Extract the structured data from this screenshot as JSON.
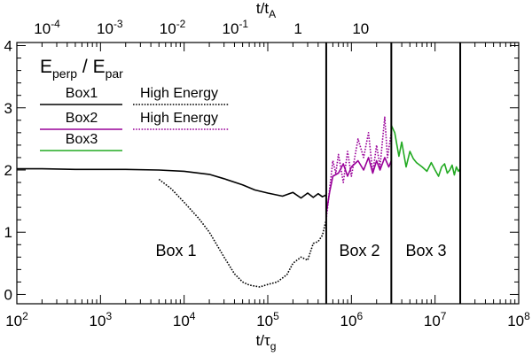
{
  "chart_data": {
    "type": "line",
    "title": "E_perp / E_par",
    "title_parts": {
      "a": "E",
      "a_sub": "perp",
      "sep": " / ",
      "b": "E",
      "b_sub": "par"
    },
    "xlabel": {
      "base": "t/τ",
      "sub": "g"
    },
    "x2label": {
      "base": "t/t",
      "sub": "A"
    },
    "xscale": "log",
    "xlim": [
      100,
      100000000
    ],
    "ylim": [
      -0.15,
      4.05
    ],
    "x_ticks": [
      {
        "value": 100,
        "base": "10",
        "exp": "2"
      },
      {
        "value": 1000,
        "base": "10",
        "exp": "3"
      },
      {
        "value": 10000,
        "base": "10",
        "exp": "4"
      },
      {
        "value": 100000,
        "base": "10",
        "exp": "5"
      },
      {
        "value": 1000000,
        "base": "10",
        "exp": "6"
      },
      {
        "value": 10000000,
        "base": "10",
        "exp": "7"
      },
      {
        "value": 100000000,
        "base": "10",
        "exp": "8"
      }
    ],
    "x2_ticks": [
      {
        "value": 0.0001,
        "base": "10",
        "exp": "-4"
      },
      {
        "value": 0.001,
        "base": "10",
        "exp": "-3"
      },
      {
        "value": 0.01,
        "base": "10",
        "exp": "-2"
      },
      {
        "value": 0.1,
        "base": "10",
        "exp": "-1"
      },
      {
        "value": 1,
        "base": "1",
        "exp": ""
      },
      {
        "value": 10,
        "base": "10",
        "exp": ""
      }
    ],
    "x2_range": [
      3.3e-05,
      3300
    ],
    "y_ticks": [
      {
        "value": 0,
        "label": "0"
      },
      {
        "value": 1,
        "label": "1"
      },
      {
        "value": 2,
        "label": "2"
      },
      {
        "value": 3,
        "label": "3"
      },
      {
        "value": 4,
        "label": "4"
      }
    ],
    "dividers": [
      500000,
      3000000,
      20000000
    ],
    "regions": [
      {
        "label": "Box 1",
        "x": 8000,
        "y": 0.62
      },
      {
        "label": "Box 2",
        "x": 1250000,
        "y": 0.62
      },
      {
        "label": "Box 3",
        "x": 7800000,
        "y": 0.62
      }
    ],
    "legend": [
      {
        "label": "Box1",
        "color": "#000000",
        "style": "solid"
      },
      {
        "label": "High Energy",
        "color": "#000000",
        "style": "dotted"
      },
      {
        "label": "Box2",
        "color": "#990099",
        "style": "solid"
      },
      {
        "label": "High Energy",
        "color": "#990099",
        "style": "dotted"
      },
      {
        "label": "Box3",
        "color": "#22aa22",
        "style": "solid"
      }
    ],
    "series": [
      {
        "name": "Box1",
        "color": "#000000",
        "style": "solid",
        "x": [
          100,
          200,
          500,
          1000,
          2000,
          5000,
          10000,
          20000,
          30000,
          50000,
          70000,
          100000,
          150000,
          200000,
          250000,
          300000,
          350000,
          400000,
          450000,
          500000
        ],
        "y": [
          2.02,
          2.02,
          2.01,
          2.01,
          2.01,
          2.0,
          1.98,
          1.93,
          1.86,
          1.76,
          1.68,
          1.63,
          1.58,
          1.64,
          1.55,
          1.63,
          1.56,
          1.62,
          1.57,
          1.6
        ]
      },
      {
        "name": "High Energy (Box1)",
        "color": "#000000",
        "style": "dotted",
        "x": [
          5000,
          7000,
          10000,
          15000,
          20000,
          30000,
          40000,
          50000,
          60000,
          80000,
          100000,
          130000,
          170000,
          200000,
          250000,
          300000,
          350000,
          400000,
          450000,
          500000
        ],
        "y": [
          1.85,
          1.7,
          1.48,
          1.22,
          1.0,
          0.6,
          0.33,
          0.2,
          0.15,
          0.12,
          0.16,
          0.2,
          0.32,
          0.5,
          0.6,
          0.55,
          0.82,
          0.85,
          0.95,
          1.2
        ]
      },
      {
        "name": "Box2",
        "color": "#990099",
        "style": "solid",
        "x": [
          500000,
          550000,
          600000,
          700000,
          800000,
          900000,
          1000000,
          1200000,
          1400000,
          1600000,
          1800000,
          2000000,
          2200000,
          2500000,
          2800000,
          3000000
        ],
        "y": [
          1.3,
          1.65,
          1.9,
          1.95,
          2.1,
          1.9,
          2.05,
          2.15,
          2.0,
          2.2,
          1.95,
          2.15,
          2.0,
          2.2,
          2.05,
          2.15
        ]
      },
      {
        "name": "High Energy (Box2)",
        "color": "#990099",
        "style": "dotted",
        "x": [
          500000,
          550000,
          600000,
          650000,
          700000,
          800000,
          900000,
          1000000,
          1200000,
          1400000,
          1600000,
          1800000,
          2000000,
          2200000,
          2500000,
          2700000,
          3000000
        ],
        "y": [
          1.2,
          1.7,
          2.15,
          1.95,
          2.25,
          1.8,
          2.3,
          1.9,
          2.5,
          2.2,
          2.6,
          1.95,
          2.4,
          2.05,
          2.85,
          2.2,
          2.6
        ]
      },
      {
        "name": "Box3",
        "color": "#22aa22",
        "style": "solid",
        "x": [
          3000000,
          3300000,
          3700000,
          4000000,
          4500000,
          5000000,
          5500000,
          6000000,
          7000000,
          8000000,
          9000000,
          10000000,
          11000000,
          12000000,
          13000000,
          14000000,
          15000000,
          16000000,
          17000000,
          18000000,
          19000000,
          20000000
        ],
        "y": [
          2.72,
          2.6,
          2.22,
          2.45,
          2.05,
          2.3,
          2.18,
          2.12,
          2.05,
          1.98,
          2.12,
          2.0,
          1.9,
          2.05,
          2.1,
          1.95,
          2.0,
          2.08,
          1.92,
          2.05,
          1.98,
          2.02
        ]
      }
    ]
  }
}
